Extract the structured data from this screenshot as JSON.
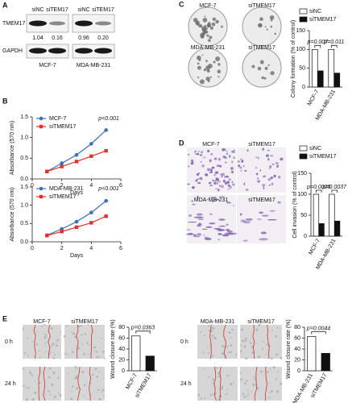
{
  "panels": [
    "A",
    "B",
    "C",
    "D",
    "E"
  ],
  "blot": {
    "lanes": [
      "siNC",
      "siTEM17",
      "siNC",
      "siTEM17"
    ],
    "rows": [
      "TMEM17",
      "GAPDH"
    ],
    "ratios": [
      "1.04",
      "0.16",
      "0.96",
      "0.20"
    ],
    "cell_lines": [
      "MCF-7",
      "MDA-MB-231"
    ]
  },
  "images": {
    "C": [
      "MCF-7",
      "siTMEM17",
      "MDA-MB-231",
      "siTMEM17"
    ],
    "D": [
      "MCF-7",
      "siTMEM17",
      "MDA-MB-231",
      "siTMEM17"
    ],
    "E": {
      "left": [
        "MCF-7",
        "siTMEM17"
      ],
      "right": [
        "MDA-MB-231",
        "siTMEM17"
      ],
      "times": [
        "0 h",
        "24 h"
      ]
    }
  },
  "chart_data": [
    {
      "type": "line",
      "x": [
        1,
        2,
        3,
        4,
        5
      ],
      "xlabel": "Days",
      "ylabel": "Absorbance (570 nm)",
      "annotation": "p<0.001",
      "series": [
        {
          "name": "MCF-7",
          "color": "#3b6fb6",
          "values": [
            0.18,
            0.38,
            0.58,
            0.85,
            1.18
          ]
        },
        {
          "name": "siTMEM17",
          "color": "#e0312f",
          "values": [
            0.18,
            0.3,
            0.42,
            0.55,
            0.68
          ]
        }
      ],
      "xlim": [
        0,
        6
      ],
      "xticks": [
        0,
        2,
        4,
        6
      ],
      "ylim": [
        0,
        1.5
      ],
      "yticks": [
        {
          "value": 0,
          "label": "0.0"
        },
        0.5,
        {
          "value": 1,
          "label": "1.0"
        },
        1.5
      ]
    },
    {
      "type": "line",
      "x": [
        1,
        2,
        3,
        4,
        5
      ],
      "xlabel": "Days",
      "ylabel": "Absorbance (570 nm)",
      "annotation": "p<0.001",
      "series": [
        {
          "name": "MDA-MB-231",
          "color": "#3b6fb6",
          "values": [
            0.18,
            0.35,
            0.55,
            0.8,
            1.12
          ]
        },
        {
          "name": "siTMEM17",
          "color": "#e0312f",
          "values": [
            0.17,
            0.28,
            0.4,
            0.52,
            0.7
          ]
        }
      ],
      "xlim": [
        0,
        6
      ],
      "xticks": [
        0,
        2,
        4,
        6
      ],
      "ylim": [
        0,
        1.5
      ],
      "yticks": [
        {
          "value": 0,
          "label": "0.0"
        },
        0.5,
        {
          "value": 1,
          "label": "1.0"
        },
        1.5
      ]
    },
    {
      "type": "bar",
      "categories": [
        "MCF-7",
        "MDA-MB-231"
      ],
      "ylabel": "Colony formation (% of control)",
      "series": [
        {
          "name": "siNC",
          "color": "#ffffff",
          "values": [
            100,
            100
          ]
        },
        {
          "name": "siTMEM17",
          "color": "#111111",
          "values": [
            43,
            37
          ]
        }
      ],
      "annotations": [
        "p=0.007",
        "p=0.011"
      ],
      "ylim": [
        0,
        150
      ],
      "yticks": [
        0,
        50,
        100,
        150
      ]
    },
    {
      "type": "bar",
      "categories": [
        "MCF-7",
        "MDA-MB-231"
      ],
      "ylabel": "Cell invasion (% of control)",
      "series": [
        {
          "name": "siNC",
          "color": "#ffffff",
          "values": [
            100,
            100
          ]
        },
        {
          "name": "siTMEM17",
          "color": "#111111",
          "values": [
            30,
            36
          ]
        }
      ],
      "annotations": [
        "p=0.0025",
        "p=0.0037"
      ],
      "ylim": [
        0,
        150
      ],
      "yticks": [
        0,
        50,
        100,
        150
      ]
    },
    {
      "type": "bar",
      "categories": [
        "MCF-7",
        "siTMEM17"
      ],
      "values": [
        64,
        27
      ],
      "colors": [
        "#ffffff",
        "#111111"
      ],
      "ylabel": "Wound closure rate (%)",
      "annotations": [
        "p=0.0363"
      ],
      "ylim": [
        0,
        80
      ],
      "yticks": [
        0,
        20,
        40,
        60,
        80
      ]
    },
    {
      "type": "bar",
      "categories": [
        "MDA-MB-231",
        "siTMEM17"
      ],
      "values": [
        63,
        32
      ],
      "colors": [
        "#ffffff",
        "#111111"
      ],
      "ylabel": "Wound closure rate (%)",
      "annotations": [
        "p=0.0044"
      ],
      "ylim": [
        0,
        80
      ],
      "yticks": [
        0,
        20,
        40,
        60,
        80
      ]
    }
  ]
}
